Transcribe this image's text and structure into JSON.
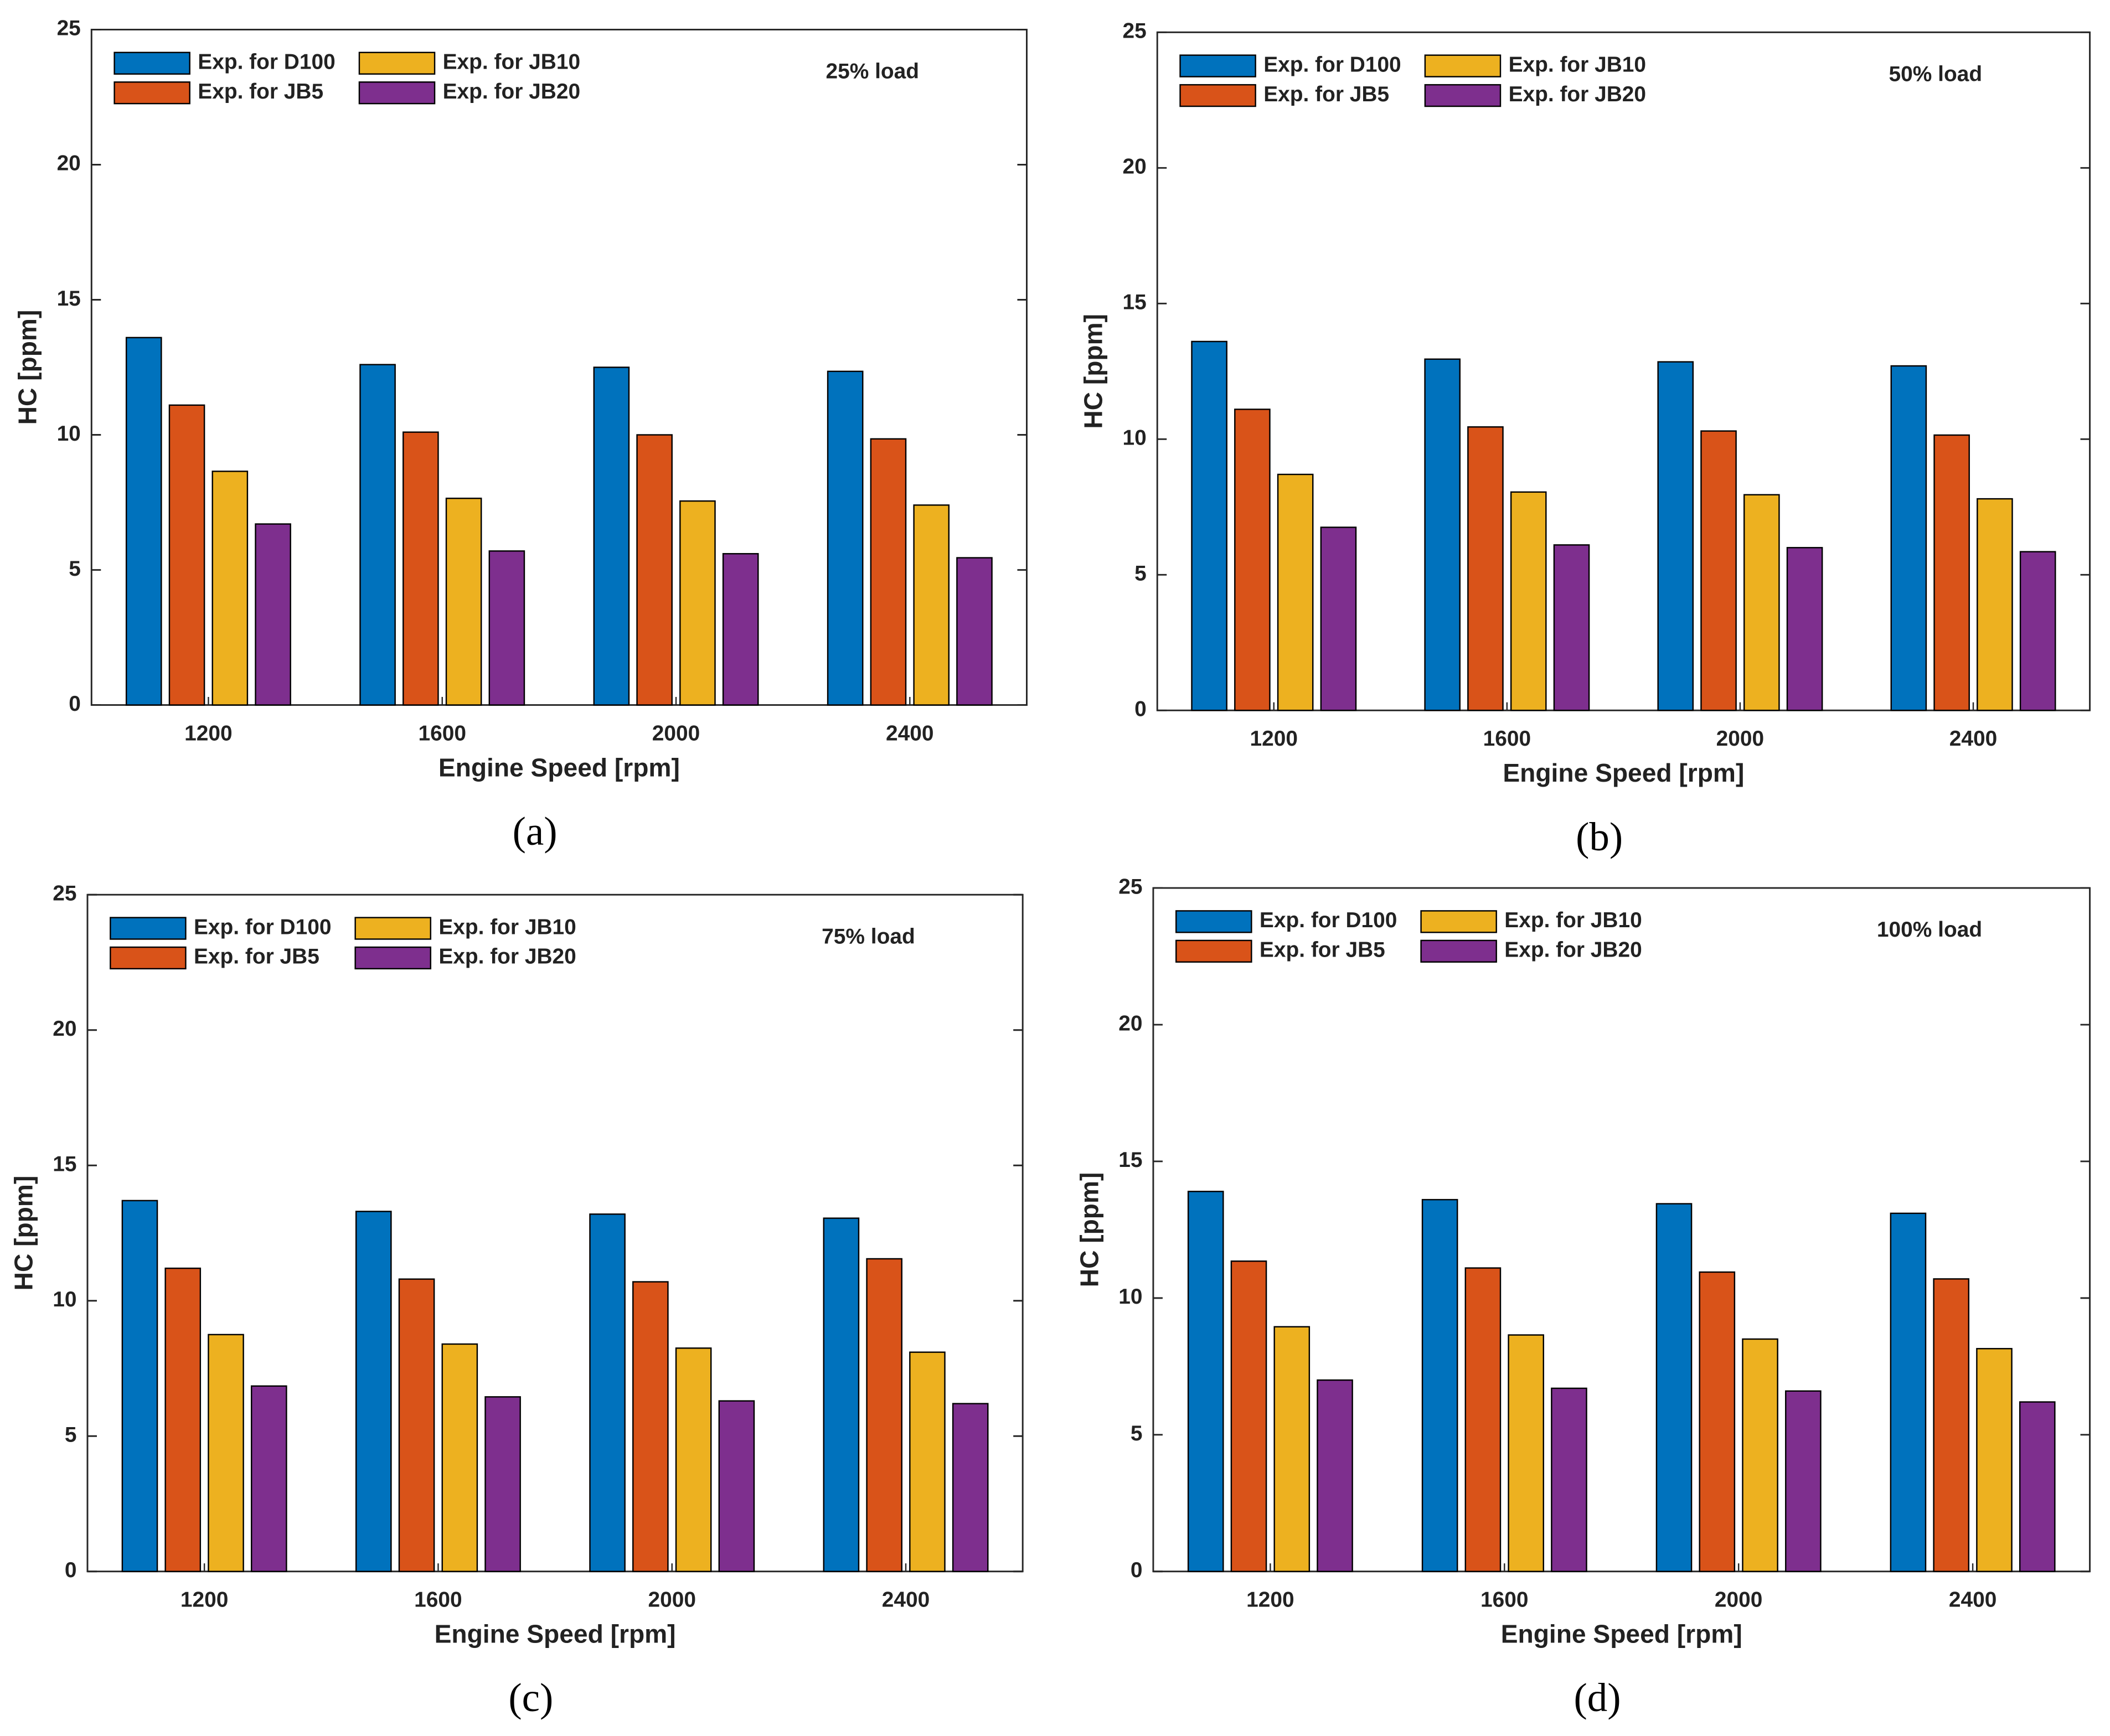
{
  "chart_data": [
    {
      "type": "bar",
      "title": "25% load",
      "panel_label": "(a)",
      "xlabel": "Engine Speed [rpm]",
      "ylabel": "HC [ppm]",
      "categories": [
        "1200",
        "1600",
        "2000",
        "2400"
      ],
      "ylim": [
        0,
        25
      ],
      "yticks": [
        0,
        5,
        10,
        15,
        20,
        25
      ],
      "series": [
        {
          "name": "Exp. for D100",
          "color": "#0072BD",
          "values": [
            13.6,
            12.6,
            12.5,
            12.35
          ]
        },
        {
          "name": "Exp. for JB5",
          "color": "#D95319",
          "values": [
            11.1,
            10.1,
            10.0,
            9.85
          ]
        },
        {
          "name": "Exp. for JB10",
          "color": "#EDB120",
          "values": [
            8.65,
            7.65,
            7.55,
            7.4
          ]
        },
        {
          "name": "Exp. for JB20",
          "color": "#7E2F8E",
          "values": [
            6.7,
            5.7,
            5.6,
            5.45
          ]
        }
      ]
    },
    {
      "type": "bar",
      "title": "50% load",
      "panel_label": "(b)",
      "xlabel": "Engine Speed [rpm]",
      "ylabel": "HC [ppm]",
      "categories": [
        "1200",
        "1600",
        "2000",
        "2400"
      ],
      "ylim": [
        0,
        25
      ],
      "yticks": [
        0,
        5,
        10,
        15,
        20,
        25
      ],
      "series": [
        {
          "name": "Exp. for D100",
          "color": "#0072BD",
          "values": [
            13.6,
            12.95,
            12.85,
            12.7
          ]
        },
        {
          "name": "Exp. for JB5",
          "color": "#D95319",
          "values": [
            11.1,
            10.45,
            10.3,
            10.15
          ]
        },
        {
          "name": "Exp. for JB10",
          "color": "#EDB120",
          "values": [
            8.7,
            8.05,
            7.95,
            7.8
          ]
        },
        {
          "name": "Exp. for JB20",
          "color": "#7E2F8E",
          "values": [
            6.75,
            6.1,
            6.0,
            5.85
          ]
        }
      ]
    },
    {
      "type": "bar",
      "title": "75% load",
      "panel_label": "(c)",
      "xlabel": "Engine Speed [rpm]",
      "ylabel": "HC [ppm]",
      "categories": [
        "1200",
        "1600",
        "2000",
        "2400"
      ],
      "ylim": [
        0,
        25
      ],
      "yticks": [
        0,
        5,
        10,
        15,
        20,
        25
      ],
      "series": [
        {
          "name": "Exp. for D100",
          "color": "#0072BD",
          "values": [
            13.7,
            13.3,
            13.2,
            13.05
          ]
        },
        {
          "name": "Exp. for JB5",
          "color": "#D95319",
          "values": [
            11.2,
            10.8,
            10.7,
            11.55
          ]
        },
        {
          "name": "Exp. for JB10",
          "color": "#EDB120",
          "values": [
            8.75,
            8.4,
            8.25,
            8.1
          ]
        },
        {
          "name": "Exp. for JB20",
          "color": "#7E2F8E",
          "values": [
            6.85,
            6.45,
            6.3,
            6.2
          ]
        }
      ]
    },
    {
      "type": "bar",
      "title": "100% load",
      "panel_label": "(d)",
      "xlabel": "Engine Speed [rpm]",
      "ylabel": "HC [ppm]",
      "categories": [
        "1200",
        "1600",
        "2000",
        "2400"
      ],
      "ylim": [
        0,
        25
      ],
      "yticks": [
        0,
        5,
        10,
        15,
        20,
        25
      ],
      "series": [
        {
          "name": "Exp. for D100",
          "color": "#0072BD",
          "values": [
            13.9,
            13.6,
            13.45,
            13.1
          ]
        },
        {
          "name": "Exp. for JB5",
          "color": "#D95319",
          "values": [
            11.35,
            11.1,
            10.95,
            10.7
          ]
        },
        {
          "name": "Exp. for JB10",
          "color": "#EDB120",
          "values": [
            8.95,
            8.65,
            8.5,
            8.15
          ]
        },
        {
          "name": "Exp. for JB20",
          "color": "#7E2F8E",
          "values": [
            7.0,
            6.7,
            6.6,
            6.2
          ]
        }
      ]
    }
  ]
}
